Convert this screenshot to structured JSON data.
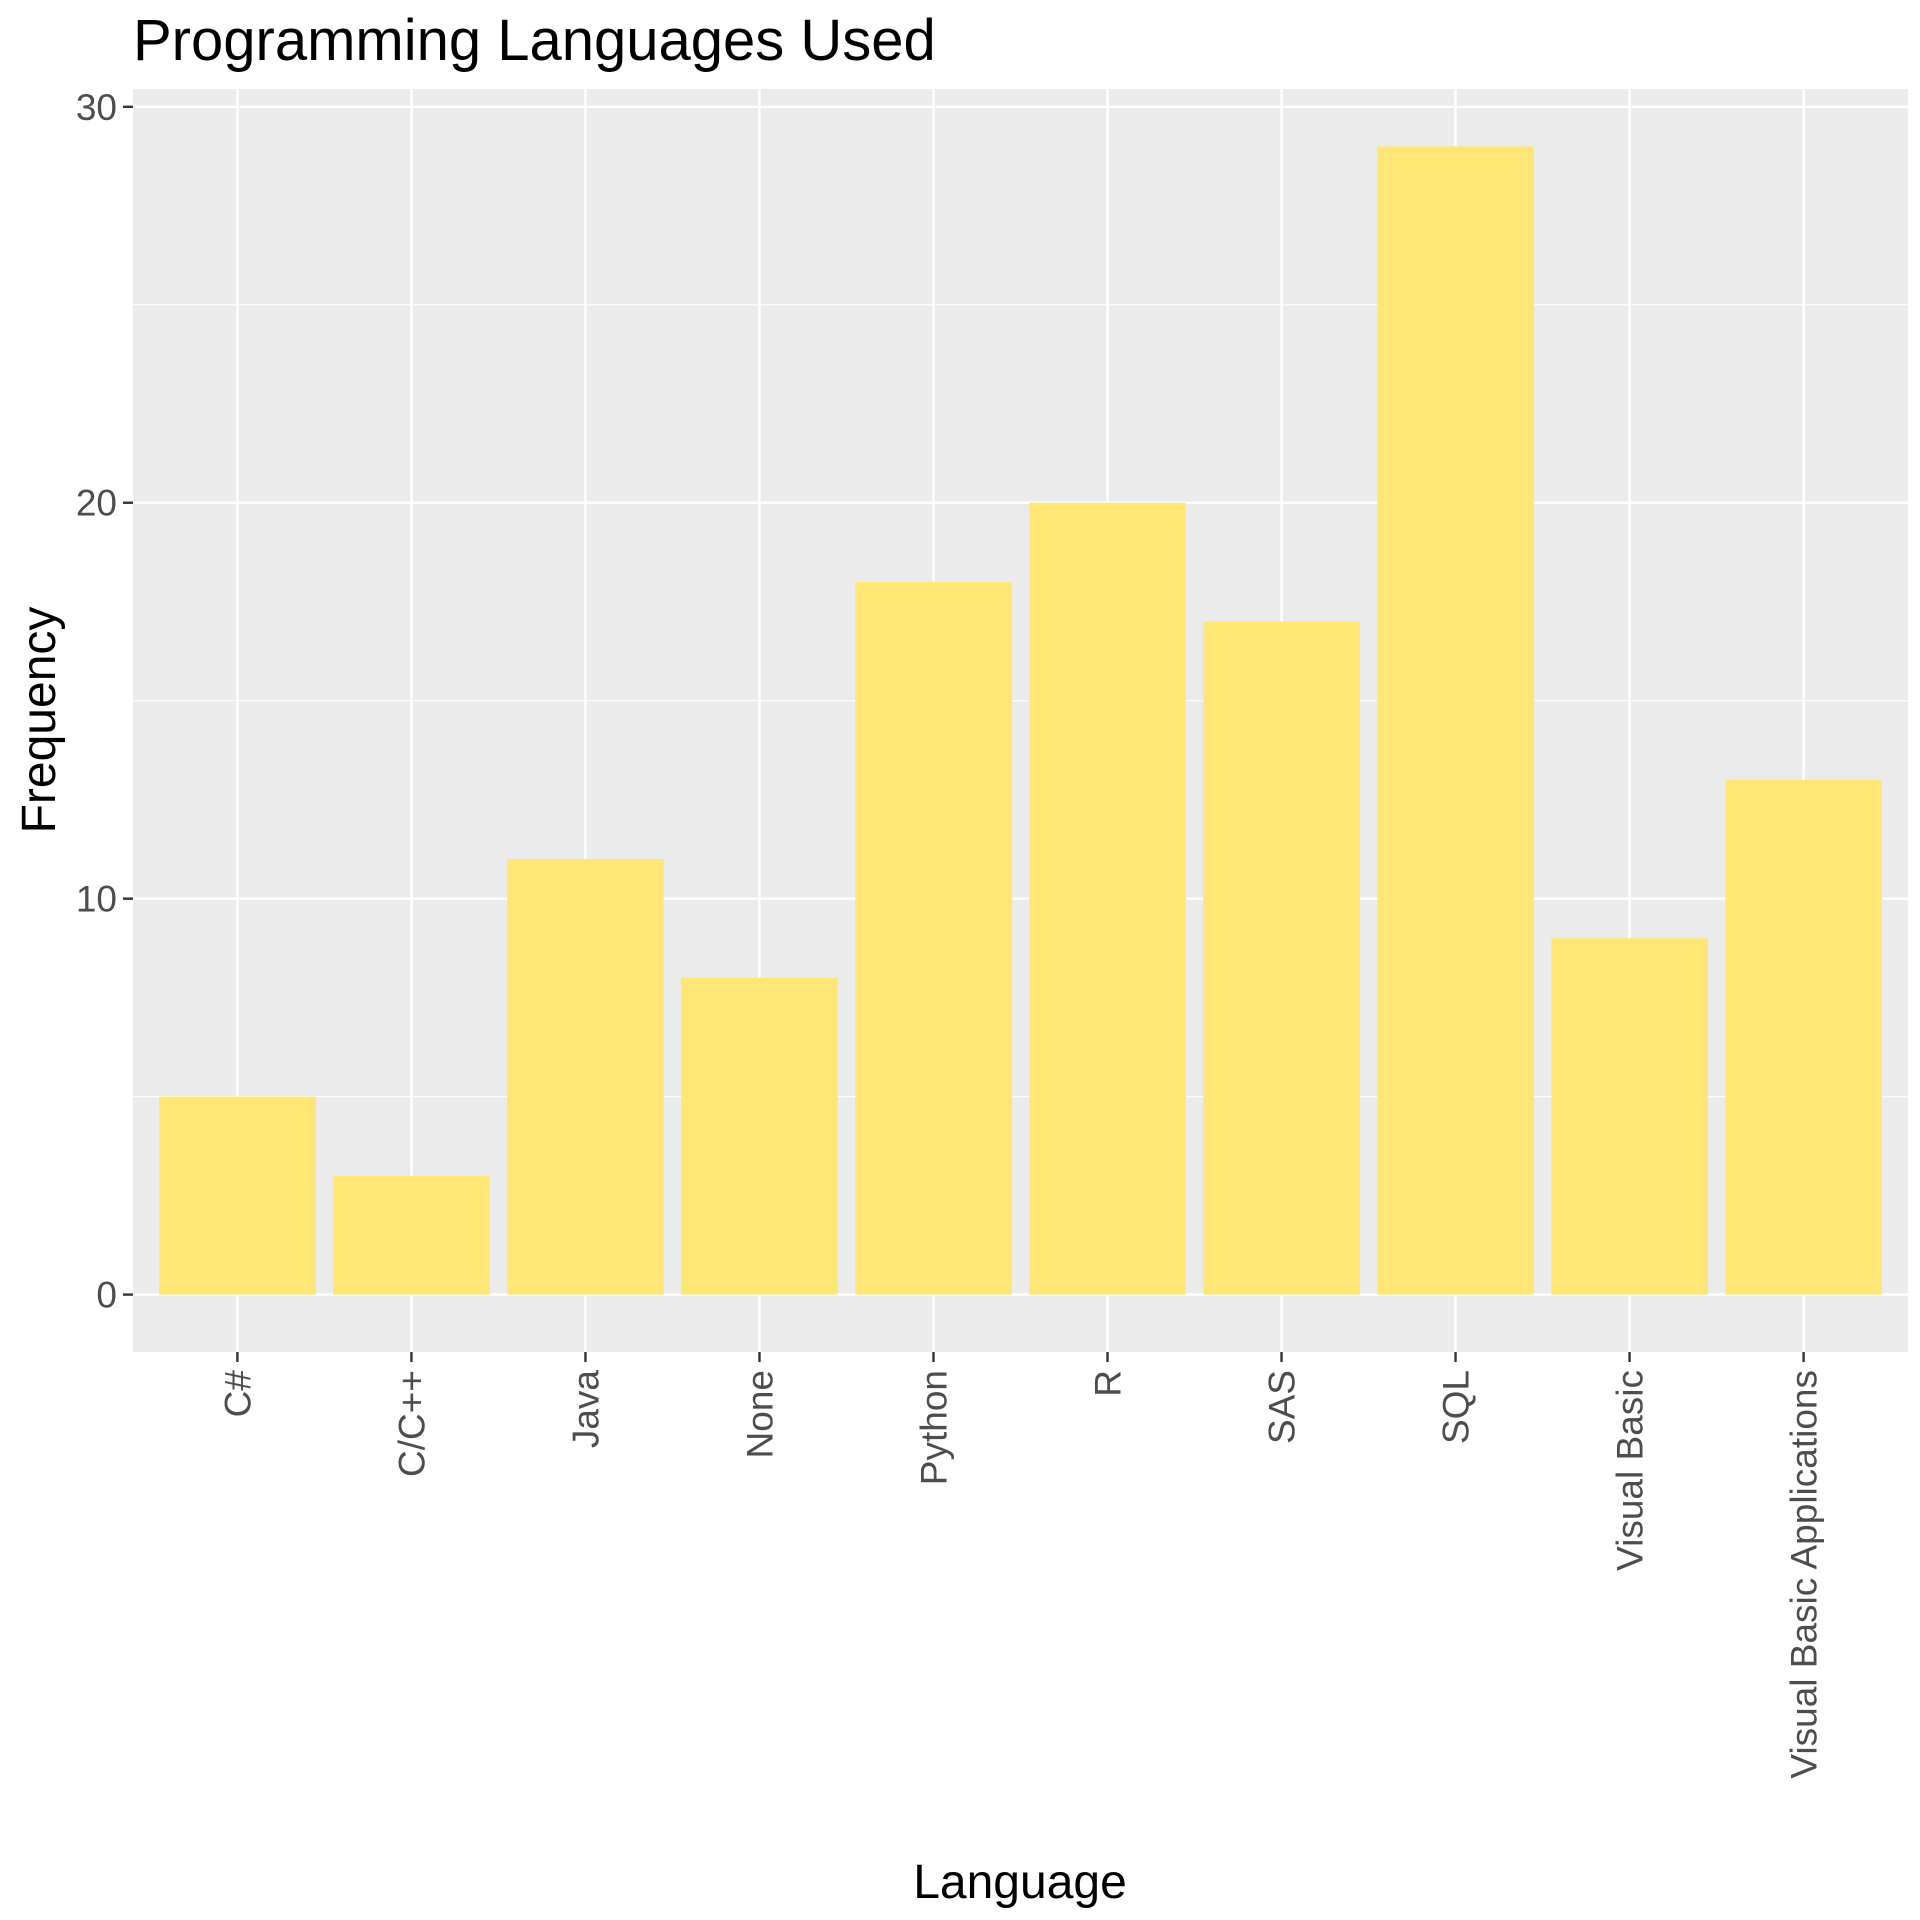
{
  "chart_data": {
    "type": "bar",
    "title": "Programming Languages Used",
    "xlabel": "Language",
    "ylabel": "Frequency",
    "categories": [
      "C#",
      "C/C++",
      "Java",
      "None",
      "Python",
      "R",
      "SAS",
      "SQL",
      "Visual Basic",
      "Visual Basic Applications"
    ],
    "values": [
      5,
      3,
      11,
      8,
      18,
      20,
      17,
      29,
      9,
      13
    ],
    "ylim": [
      -1.45,
      30.45
    ],
    "yticks": [
      0,
      10,
      20,
      30
    ],
    "grid": true,
    "legend": "none",
    "colors": {
      "bar": "#FFE675",
      "panel": "#EBEBEB",
      "grid": "#FFFFFF",
      "tick_label": "#4D4D4D",
      "tick_mark": "#333333",
      "text": "#000000"
    }
  }
}
